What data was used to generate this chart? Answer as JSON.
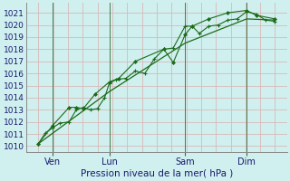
{
  "xlabel": "Pression niveau de la mer( hPa )",
  "background_color": "#cff0ef",
  "grid_color_h": "#d8b8b8",
  "grid_color_v": "#d8b8b8",
  "line_color": "#1a6b1a",
  "ylim": [
    1009.5,
    1021.8
  ],
  "yticks": [
    1010,
    1011,
    1012,
    1013,
    1014,
    1015,
    1016,
    1017,
    1018,
    1019,
    1020,
    1021
  ],
  "xlim": [
    -0.05,
    1.05
  ],
  "x_tick_labels": [
    "Ven",
    "Lun",
    "Sam",
    "Dim"
  ],
  "x_tick_positions": [
    0.06,
    0.3,
    0.62,
    0.88
  ],
  "vlines_x": [
    0.06,
    0.3,
    0.62,
    0.88
  ],
  "series1_x": [
    0.0,
    0.03,
    0.06,
    0.09,
    0.13,
    0.16,
    0.19,
    0.22,
    0.25,
    0.28,
    0.3,
    0.33,
    0.37,
    0.41,
    0.45,
    0.49,
    0.53,
    0.57,
    0.62,
    0.65,
    0.68,
    0.72,
    0.76,
    0.8,
    0.84,
    0.88,
    0.92,
    0.96,
    1.0
  ],
  "series1_y": [
    1010.2,
    1011.1,
    1011.5,
    1011.9,
    1012.0,
    1013.0,
    1013.2,
    1013.0,
    1013.1,
    1014.0,
    1015.2,
    1015.5,
    1015.6,
    1016.2,
    1016.0,
    1017.2,
    1018.0,
    1018.1,
    1019.9,
    1019.9,
    1019.3,
    1019.9,
    1020.0,
    1020.4,
    1020.5,
    1021.1,
    1020.9,
    1020.4,
    1020.3
  ],
  "series2_x": [
    0.0,
    0.06,
    0.13,
    0.16,
    0.19,
    0.24,
    0.3,
    0.34,
    0.41,
    0.53,
    0.57,
    0.62,
    0.65,
    0.72,
    0.8,
    0.88,
    0.92,
    1.0
  ],
  "series2_y": [
    1010.2,
    1011.7,
    1013.2,
    1013.2,
    1013.1,
    1014.3,
    1015.3,
    1015.6,
    1017.0,
    1018.0,
    1016.9,
    1019.2,
    1019.9,
    1020.5,
    1021.0,
    1021.2,
    1020.8,
    1020.5
  ],
  "series3_x": [
    0.0,
    0.3,
    0.62,
    0.88,
    1.0
  ],
  "series3_y": [
    1010.2,
    1014.5,
    1018.5,
    1020.5,
    1020.4
  ]
}
